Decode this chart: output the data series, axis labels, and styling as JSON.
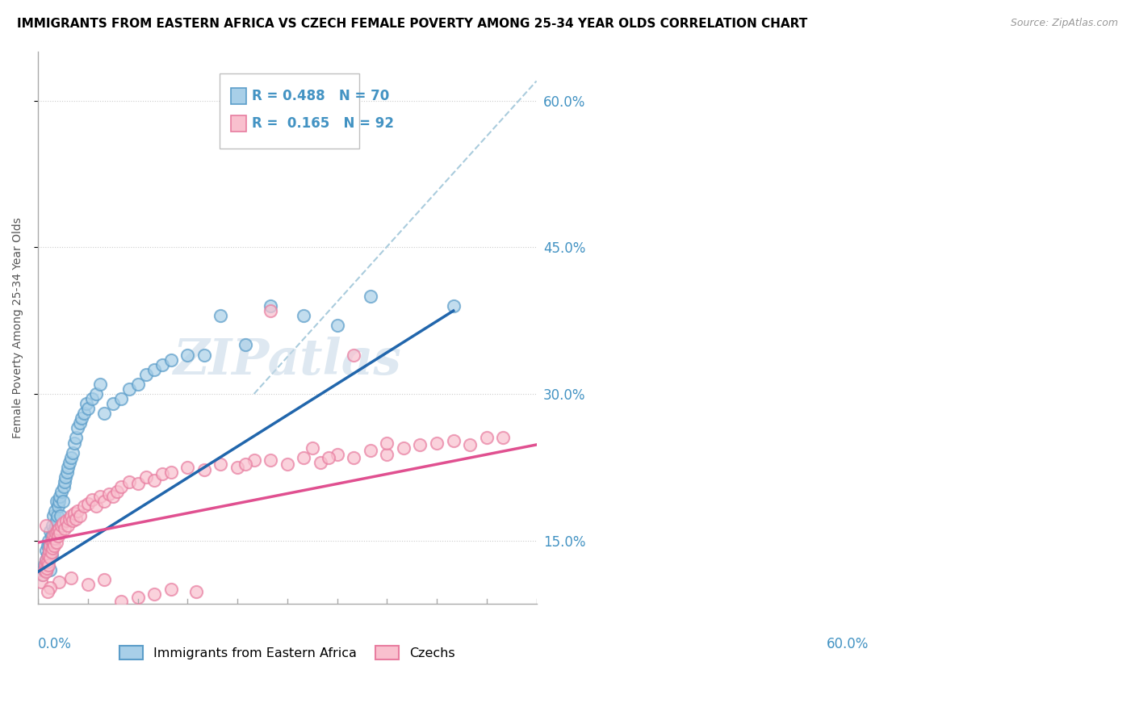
{
  "title": "IMMIGRANTS FROM EASTERN AFRICA VS CZECH FEMALE POVERTY AMONG 25-34 YEAR OLDS CORRELATION CHART",
  "source": "Source: ZipAtlas.com",
  "ylabel": "Female Poverty Among 25-34 Year Olds",
  "ytick_labels": [
    "15.0%",
    "30.0%",
    "45.0%",
    "60.0%"
  ],
  "ytick_values": [
    0.15,
    0.3,
    0.45,
    0.6
  ],
  "xlim": [
    0.0,
    0.6
  ],
  "ylim": [
    0.085,
    0.65
  ],
  "legend_label1": "Immigrants from Eastern Africa",
  "legend_label2": "Czechs",
  "r1": 0.488,
  "n1": 70,
  "r2": 0.165,
  "n2": 92,
  "color_blue": "#a8cfe8",
  "color_pink": "#f9c0ce",
  "color_blue_edge": "#5b9dc9",
  "color_pink_edge": "#e87da0",
  "color_blue_line": "#2166ac",
  "color_pink_line": "#e05090",
  "color_dashed": "#aaccdd",
  "watermark": "ZIPatlas",
  "blue_scatter_x": [
    0.005,
    0.007,
    0.008,
    0.009,
    0.01,
    0.01,
    0.011,
    0.012,
    0.012,
    0.013,
    0.013,
    0.014,
    0.015,
    0.015,
    0.016,
    0.016,
    0.017,
    0.017,
    0.018,
    0.018,
    0.019,
    0.02,
    0.02,
    0.021,
    0.022,
    0.022,
    0.023,
    0.024,
    0.025,
    0.026,
    0.027,
    0.028,
    0.03,
    0.031,
    0.032,
    0.033,
    0.035,
    0.036,
    0.038,
    0.04,
    0.042,
    0.044,
    0.046,
    0.048,
    0.05,
    0.052,
    0.055,
    0.058,
    0.06,
    0.065,
    0.07,
    0.075,
    0.08,
    0.09,
    0.1,
    0.11,
    0.12,
    0.13,
    0.14,
    0.15,
    0.16,
    0.18,
    0.2,
    0.22,
    0.25,
    0.28,
    0.32,
    0.36,
    0.4,
    0.5
  ],
  "blue_scatter_y": [
    0.115,
    0.12,
    0.125,
    0.118,
    0.13,
    0.14,
    0.125,
    0.135,
    0.145,
    0.13,
    0.15,
    0.145,
    0.12,
    0.16,
    0.155,
    0.135,
    0.165,
    0.145,
    0.175,
    0.15,
    0.16,
    0.155,
    0.18,
    0.165,
    0.17,
    0.19,
    0.175,
    0.185,
    0.19,
    0.195,
    0.175,
    0.2,
    0.19,
    0.205,
    0.21,
    0.215,
    0.22,
    0.225,
    0.23,
    0.235,
    0.24,
    0.25,
    0.255,
    0.265,
    0.27,
    0.275,
    0.28,
    0.29,
    0.285,
    0.295,
    0.3,
    0.31,
    0.28,
    0.29,
    0.295,
    0.305,
    0.31,
    0.32,
    0.325,
    0.33,
    0.335,
    0.34,
    0.34,
    0.38,
    0.35,
    0.39,
    0.38,
    0.37,
    0.4,
    0.39
  ],
  "pink_scatter_x": [
    0.004,
    0.006,
    0.008,
    0.009,
    0.01,
    0.01,
    0.011,
    0.012,
    0.013,
    0.013,
    0.014,
    0.015,
    0.015,
    0.016,
    0.016,
    0.017,
    0.018,
    0.018,
    0.019,
    0.02,
    0.021,
    0.022,
    0.023,
    0.024,
    0.025,
    0.026,
    0.028,
    0.03,
    0.032,
    0.034,
    0.036,
    0.038,
    0.04,
    0.042,
    0.044,
    0.046,
    0.048,
    0.05,
    0.055,
    0.06,
    0.065,
    0.07,
    0.075,
    0.08,
    0.085,
    0.09,
    0.095,
    0.1,
    0.11,
    0.12,
    0.13,
    0.14,
    0.15,
    0.16,
    0.18,
    0.2,
    0.22,
    0.24,
    0.26,
    0.28,
    0.3,
    0.32,
    0.34,
    0.36,
    0.38,
    0.4,
    0.42,
    0.44,
    0.46,
    0.48,
    0.5,
    0.52,
    0.54,
    0.56,
    0.28,
    0.35,
    0.38,
    0.42,
    0.33,
    0.25,
    0.19,
    0.16,
    0.14,
    0.12,
    0.1,
    0.08,
    0.06,
    0.04,
    0.025,
    0.015,
    0.012,
    0.01
  ],
  "pink_scatter_y": [
    0.108,
    0.115,
    0.12,
    0.125,
    0.118,
    0.13,
    0.122,
    0.128,
    0.135,
    0.125,
    0.14,
    0.132,
    0.145,
    0.138,
    0.15,
    0.142,
    0.148,
    0.155,
    0.145,
    0.152,
    0.158,
    0.148,
    0.16,
    0.155,
    0.162,
    0.158,
    0.165,
    0.168,
    0.162,
    0.17,
    0.165,
    0.172,
    0.175,
    0.17,
    0.178,
    0.172,
    0.18,
    0.175,
    0.185,
    0.188,
    0.192,
    0.185,
    0.195,
    0.19,
    0.198,
    0.195,
    0.2,
    0.205,
    0.21,
    0.208,
    0.215,
    0.212,
    0.218,
    0.22,
    0.225,
    0.222,
    0.228,
    0.225,
    0.232,
    0.385,
    0.228,
    0.235,
    0.23,
    0.238,
    0.235,
    0.242,
    0.238,
    0.245,
    0.248,
    0.25,
    0.252,
    0.248,
    0.255,
    0.255,
    0.232,
    0.235,
    0.34,
    0.25,
    0.245,
    0.228,
    0.098,
    0.1,
    0.095,
    0.092,
    0.088,
    0.11,
    0.105,
    0.112,
    0.108,
    0.102,
    0.098,
    0.165
  ],
  "blue_line_x": [
    0.0,
    0.5
  ],
  "blue_line_y": [
    0.118,
    0.385
  ],
  "pink_line_x": [
    0.0,
    0.6
  ],
  "pink_line_y": [
    0.148,
    0.248
  ],
  "dash_line_x": [
    0.26,
    0.6
  ],
  "dash_line_y": [
    0.3,
    0.62
  ]
}
